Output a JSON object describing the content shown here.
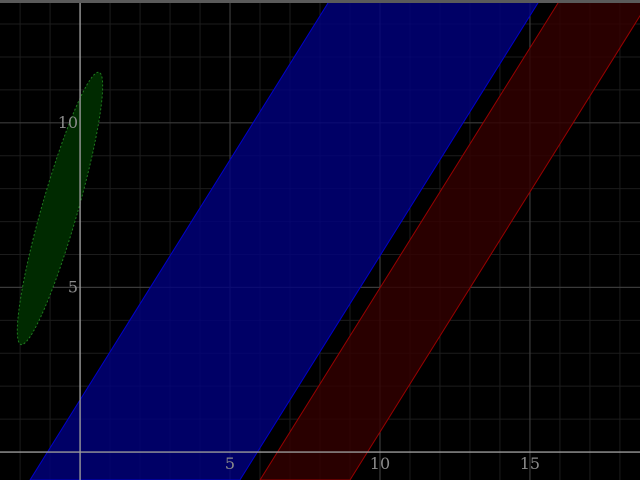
{
  "chart_data": {
    "type": "region",
    "xlim": [
      -2.67,
      18.67
    ],
    "ylim": [
      -0.85,
      13.73
    ],
    "grid": true,
    "minor_grid": true,
    "x_ticks": [
      "5",
      "10",
      "15"
    ],
    "y_ticks": [
      "5",
      "10"
    ],
    "regions": [
      {
        "shape": "band",
        "color": "#000080",
        "edge_color": "#0000cc",
        "polygon": [
          [
            -1.67,
            -0.85
          ],
          [
            5.33,
            -0.85
          ],
          [
            15.33,
            13.73
          ],
          [
            8.33,
            13.73
          ]
        ]
      },
      {
        "shape": "band",
        "color": "#330000",
        "edge_color": "#990000",
        "polygon": [
          [
            6.0,
            -0.85
          ],
          [
            9.0,
            -0.85
          ],
          [
            19.0,
            13.73
          ],
          [
            16.0,
            13.73
          ]
        ]
      },
      {
        "shape": "ellipse",
        "color": "#002a00",
        "edge_color": "#1f7a1f",
        "center": [
          -0.67,
          7.4
        ],
        "rx": 0.6,
        "ry": 4.3,
        "rotation_deg": 16
      }
    ]
  }
}
